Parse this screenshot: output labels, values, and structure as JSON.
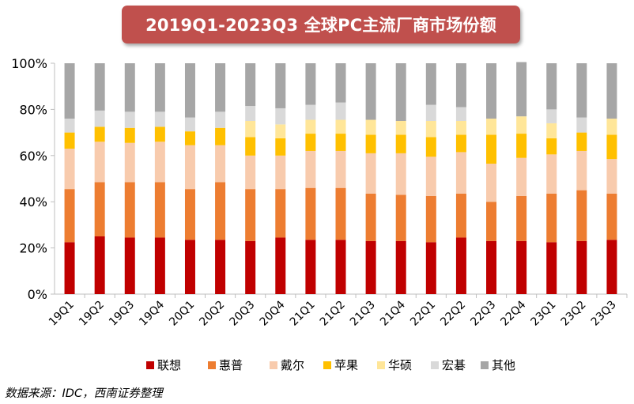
{
  "title": "2019Q1-2023Q3 全球PC主流厂商市场份额",
  "source": "数据来源：IDC，西南证券整理",
  "chart_data": {
    "type": "bar",
    "stacked": true,
    "title": "2019Q1-2023Q3 全球PC主流厂商市场份额",
    "xlabel": "",
    "ylabel": "",
    "ylim": [
      0,
      100
    ],
    "yticks": [
      "0%",
      "20%",
      "40%",
      "60%",
      "80%",
      "100%"
    ],
    "grid": false,
    "legend_position": "bottom",
    "categories": [
      "19Q1",
      "19Q2",
      "19Q3",
      "19Q4",
      "20Q1",
      "20Q2",
      "20Q3",
      "20Q4",
      "21Q1",
      "21Q2",
      "21Q3",
      "21Q4",
      "22Q1",
      "22Q2",
      "22Q3",
      "22Q4",
      "23Q1",
      "23Q2",
      "23Q3"
    ],
    "series": [
      {
        "name": "联想",
        "color": "#c00000",
        "values": [
          22.5,
          25.0,
          24.5,
          24.5,
          23.5,
          23.5,
          23.0,
          24.5,
          23.5,
          23.5,
          23.0,
          23.0,
          22.5,
          24.5,
          23.0,
          23.0,
          22.5,
          23.0,
          23.5
        ]
      },
      {
        "name": "惠普",
        "color": "#ed7d31",
        "values": [
          23.0,
          23.5,
          24.0,
          24.0,
          22.0,
          25.0,
          22.5,
          21.0,
          22.5,
          22.5,
          20.5,
          20.0,
          20.0,
          19.0,
          17.0,
          19.5,
          21.0,
          22.0,
          20.0
        ]
      },
      {
        "name": "戴尔",
        "color": "#f8cbad",
        "values": [
          17.5,
          17.5,
          17.0,
          17.5,
          19.0,
          16.0,
          14.5,
          14.5,
          16.0,
          16.0,
          17.5,
          18.0,
          17.0,
          18.0,
          16.5,
          16.5,
          17.0,
          17.0,
          15.0
        ]
      },
      {
        "name": "苹果",
        "color": "#ffc000",
        "values": [
          7.0,
          6.5,
          6.5,
          6.5,
          6.0,
          7.5,
          8.0,
          7.5,
          7.5,
          7.5,
          8.0,
          8.0,
          8.5,
          7.5,
          12.5,
          10.5,
          7.0,
          8.0,
          10.5
        ]
      },
      {
        "name": "华硕",
        "color": "#ffe699",
        "values": [
          0.0,
          0.0,
          0.0,
          0.0,
          0.0,
          0.0,
          7.0,
          6.0,
          6.0,
          6.0,
          6.5,
          6.0,
          7.0,
          6.0,
          7.0,
          7.5,
          6.5,
          0.0,
          7.0
        ]
      },
      {
        "name": "宏碁",
        "color": "#d9d9d9",
        "values": [
          6.0,
          7.0,
          7.0,
          6.5,
          6.0,
          7.0,
          6.5,
          7.0,
          6.5,
          7.5,
          0.0,
          0.0,
          7.0,
          6.0,
          0.0,
          0.0,
          6.0,
          6.5,
          0.0
        ]
      },
      {
        "name": "其他",
        "color": "#a6a6a6",
        "values": [
          24.0,
          20.5,
          21.0,
          21.0,
          23.5,
          21.0,
          18.5,
          19.5,
          18.0,
          17.0,
          24.5,
          25.0,
          18.0,
          19.0,
          24.0,
          23.5,
          20.0,
          23.5,
          24.0
        ]
      }
    ]
  }
}
